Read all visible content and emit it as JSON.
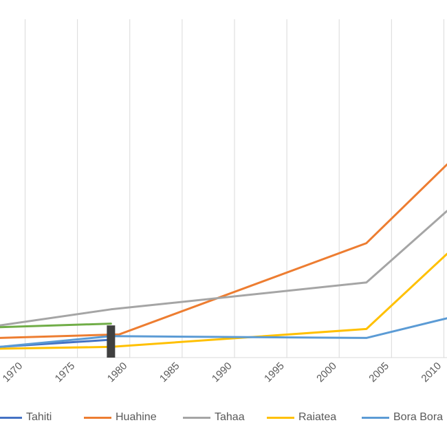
{
  "chart_data": {
    "type": "line",
    "title": "",
    "xlabel": "",
    "ylabel": "",
    "x_ticks": [
      1970,
      1975,
      1980,
      1985,
      1990,
      1995,
      2000,
      2005,
      2010
    ],
    "tick_labels": [
      "1970",
      "1975",
      "1980",
      "1985",
      "1990",
      "1995",
      "2000",
      "2005",
      "2010"
    ],
    "xlim": [
      1967.6,
      2010.3
    ],
    "ylim": [
      0,
      100
    ],
    "grid": "vertical",
    "legend_position": "bottom",
    "series": [
      {
        "name": "Tahiti",
        "color": "#4472C4",
        "x": [
          1967.6,
          1978.2
        ],
        "y": [
          3,
          5
        ]
      },
      {
        "name": "Huahine",
        "color": "#ED7D31",
        "x": [
          1967.6,
          1979.0,
          2002.6,
          2010.3
        ],
        "y": [
          5.5,
          6.5,
          32,
          54
        ]
      },
      {
        "name": "Tahaa",
        "color": "#A5A5A5",
        "x": [
          1967.6,
          1978.2,
          2002.6,
          2010.3
        ],
        "y": [
          9,
          13.5,
          21,
          41
        ]
      },
      {
        "name": "Raiatea",
        "color": "#FFC000",
        "x": [
          1967.6,
          1978.2,
          2002.6,
          2010.3
        ],
        "y": [
          2.5,
          3,
          8,
          29
        ]
      },
      {
        "name": "Bora Bora",
        "color": "#5B9BD5",
        "x": [
          1967.6,
          1978.2,
          2002.6,
          2010.3
        ],
        "y": [
          3,
          6,
          5.5,
          11
        ]
      },
      {
        "name": "",
        "color": "#70AD47",
        "x": [
          1967.6,
          1978.2
        ],
        "y": [
          8.5,
          9.5
        ]
      }
    ],
    "marker": {
      "x": 1978.2,
      "color": "#404040"
    }
  },
  "legend": [
    {
      "label": "Tahiti",
      "color": "#4472C4"
    },
    {
      "label": "Huahine",
      "color": "#ED7D31"
    },
    {
      "label": "Tahaa",
      "color": "#A5A5A5"
    },
    {
      "label": "Raiatea",
      "color": "#FFC000"
    },
    {
      "label": "Bora Bora",
      "color": "#5B9BD5"
    }
  ]
}
